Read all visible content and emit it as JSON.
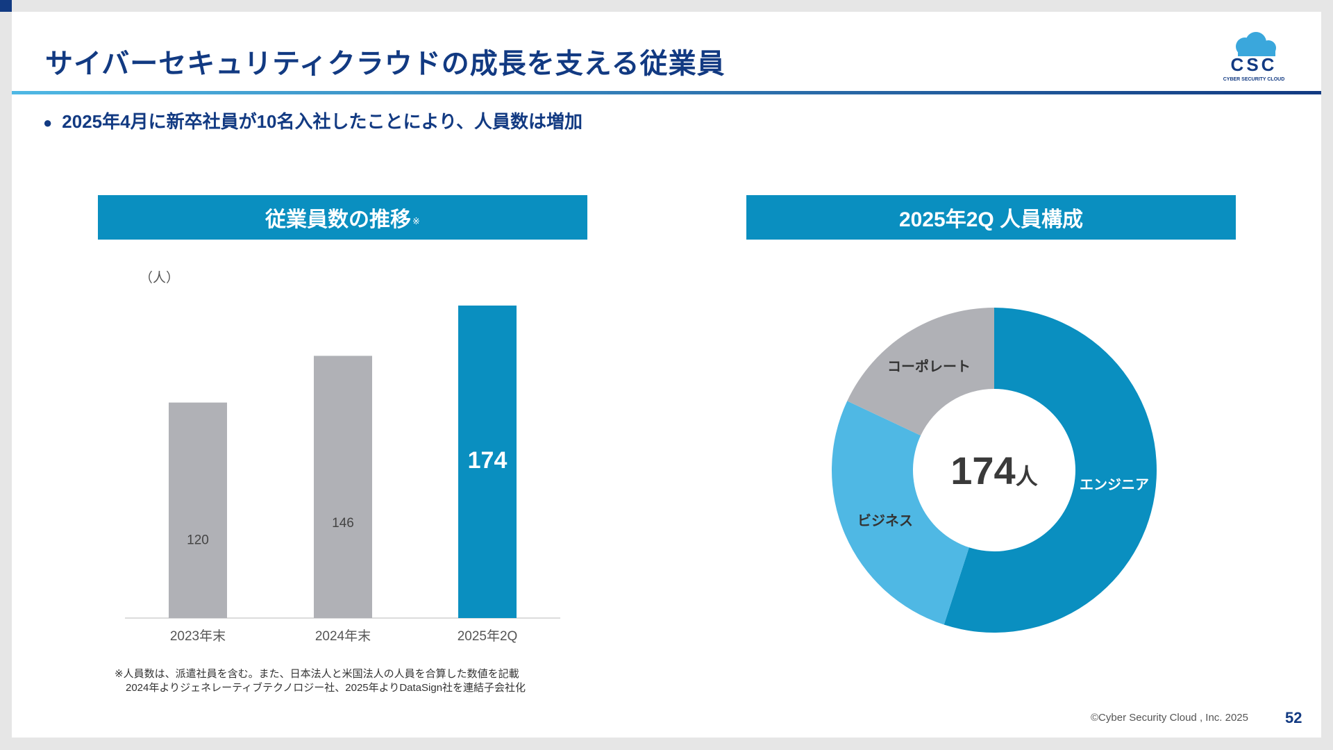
{
  "slide": {
    "title": "サイバーセキュリティクラウドの成長を支える従業員",
    "bullet": "2025年4月に新卒社員が10名入社したことにより、人員数は増加",
    "logo_text": "CSC",
    "logo_subtext": "CYBER SECURITY CLOUD",
    "copyright": "©Cyber Security Cloud , Inc. 2025",
    "page_number": "52"
  },
  "colors": {
    "brand_navy": "#123a82",
    "accent_blue": "#0a8fc0",
    "light_blue": "#4fb8e4",
    "gray": "#b0b1b6"
  },
  "left_panel": {
    "header": "従業員数の推移",
    "header_mark": "※",
    "unit": "（人）",
    "footnote_line1": "※人員数は、派遣社員を含む。また、日本法人と米国法人の人員を合算した数値を記載",
    "footnote_line2": "2024年よりジェネレーティブテクノロジー社、2025年よりDataSign社を連結子会社化"
  },
  "right_panel": {
    "header": "2025年2Q 人員構成",
    "center_value": "174",
    "center_unit": "人"
  },
  "chart_data": [
    {
      "type": "bar",
      "categories": [
        "2023年末",
        "2024年末",
        "2025年2Q"
      ],
      "values": [
        120,
        146,
        174
      ],
      "ylim": [
        0,
        174
      ],
      "colors": [
        "#b0b1b6",
        "#b0b1b6",
        "#0a8fc0"
      ],
      "ylabel": "（人）",
      "grid": false
    },
    {
      "type": "pie",
      "donut": true,
      "slices": [
        {
          "label": "エンジニア",
          "value": 55,
          "color": "#0a8fc0"
        },
        {
          "label": "ビジネス",
          "value": 27,
          "color": "#4fb8e4"
        },
        {
          "label": "コーポレート",
          "value": 18,
          "color": "#b0b1b6"
        }
      ],
      "center_label": "174人"
    }
  ]
}
